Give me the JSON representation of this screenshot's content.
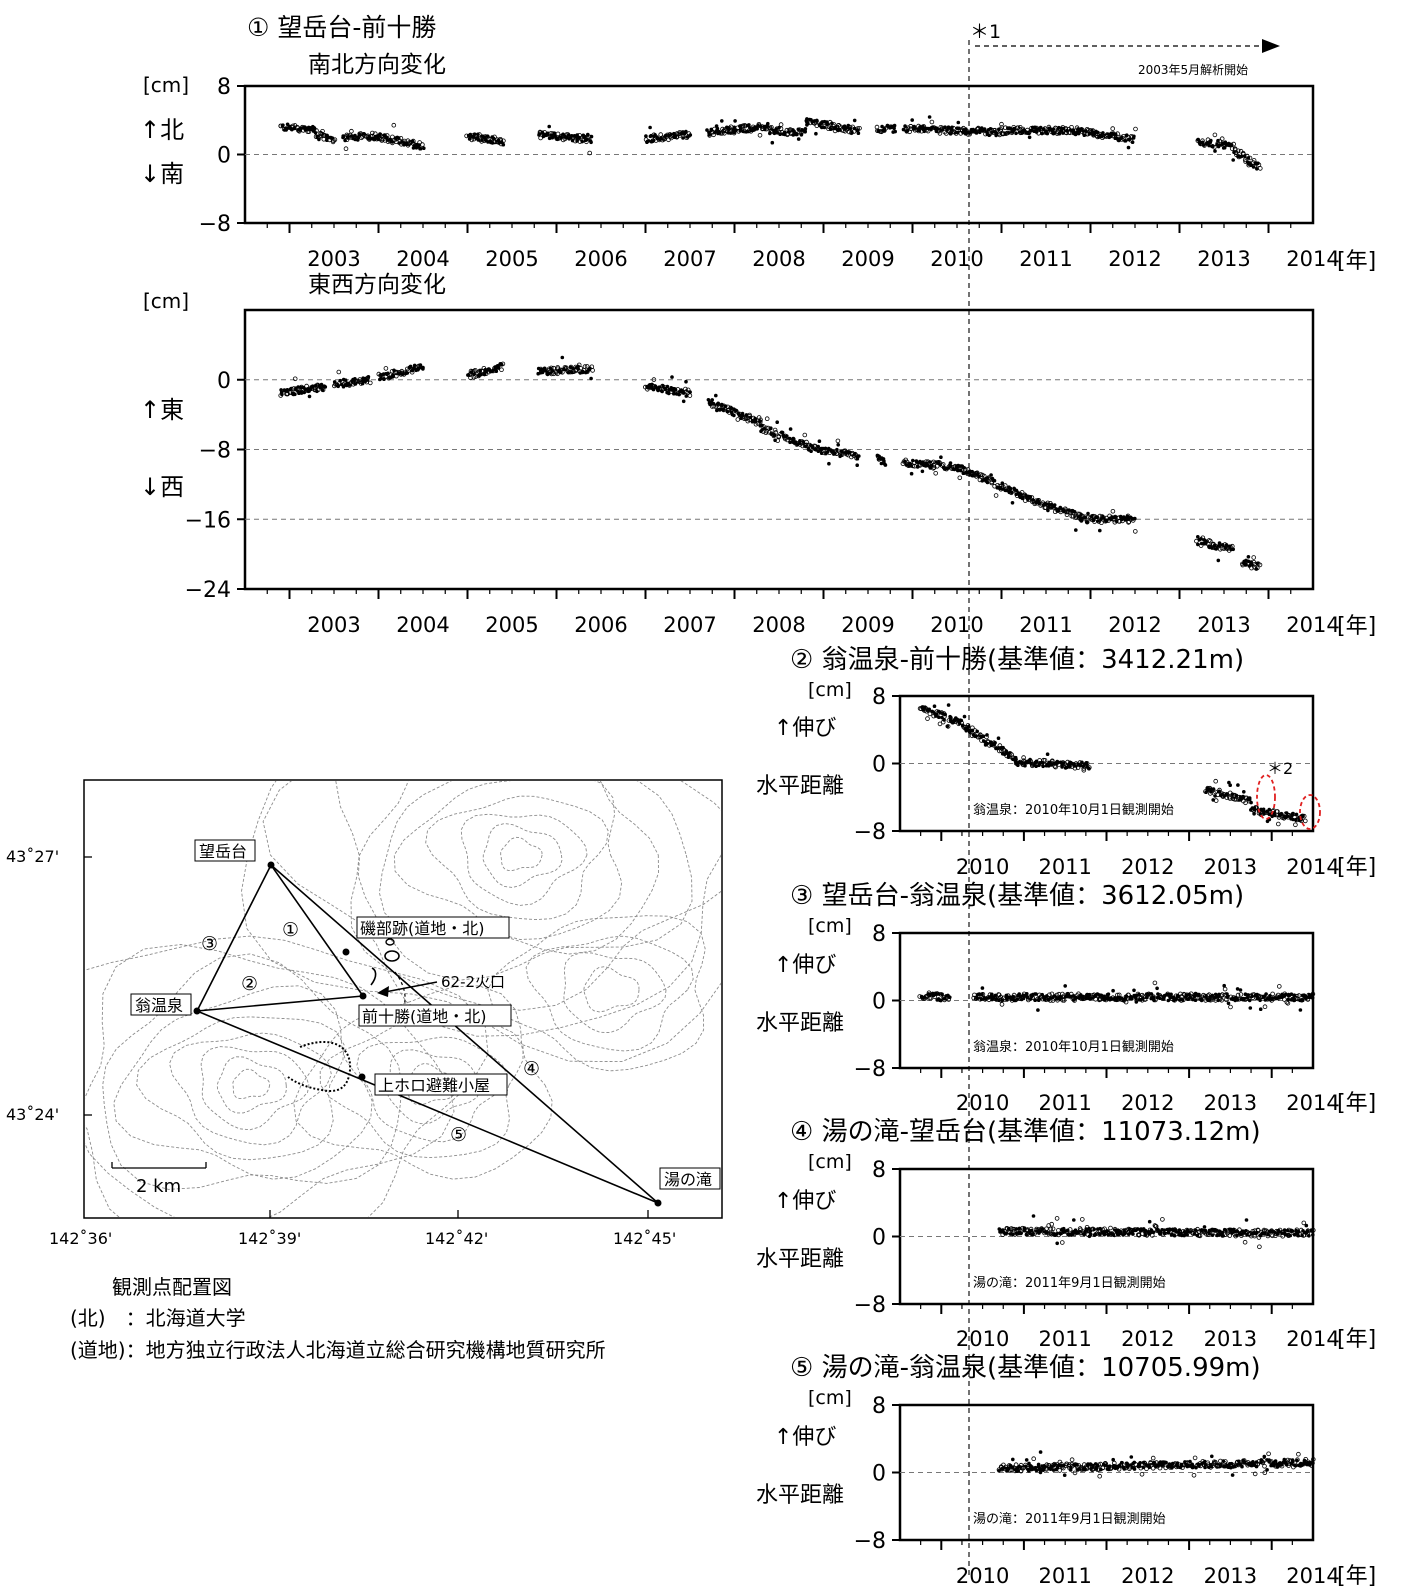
{
  "panel1": {
    "title": "① 望岳台-前十勝",
    "note_marker": "＊1",
    "note_text": "2003年5月解析開始"
  },
  "ns": {
    "subtitle": "南北方向変化",
    "unit": "[cm]",
    "up_label": "↑北",
    "down_label": "↓南"
  },
  "ew": {
    "subtitle": "東西方向変化",
    "unit": "[cm]",
    "up_label": "↑東",
    "down_label": "↓西"
  },
  "year_unit": "[年]",
  "baselines": [
    {
      "title": "② 翁温泉-前十勝(基準値：3412.21m)",
      "unit": "[cm]",
      "up_label": "↑伸び",
      "side_label": "水平距離",
      "note": "翁温泉：2010年10月1日観測開始",
      "marker": "＊2"
    },
    {
      "title": "③ 望岳台-翁温泉(基準値：3612.05m)",
      "unit": "[cm]",
      "up_label": "↑伸び",
      "side_label": "水平距離",
      "note": "翁温泉：2010年10月1日観測開始",
      "marker": ""
    },
    {
      "title": "④ 湯の滝-望岳台(基準値：11073.12m)",
      "unit": "[cm]",
      "up_label": "↑伸び",
      "side_label": "水平距離",
      "note": "湯の滝：2011年9月1日観測開始",
      "marker": ""
    },
    {
      "title": "⑤ 湯の滝-翁温泉(基準値：10705.99m)",
      "unit": "[cm]",
      "up_label": "↑伸び",
      "side_label": "水平距離",
      "note": "湯の滝：2011年9月1日観測開始",
      "marker": ""
    }
  ],
  "map": {
    "lat_labels": [
      "43˚27'",
      "43˚24'"
    ],
    "lon_labels": [
      "142˚36'",
      "142˚39'",
      "142˚42'",
      "142˚45'"
    ],
    "scale_label": "2 km",
    "stations": [
      "望岳台",
      "翁温泉",
      "前十勝(道地・北)",
      "上ホロ避難小屋",
      "湯の滝",
      "磯部跡(道地・北)"
    ],
    "crater_label": "62-2火口",
    "baseline_numbers": [
      "①",
      "②",
      "③",
      "④",
      "⑤"
    ],
    "caption": "観測点配置図",
    "legend": [
      "(北)　：北海道大学",
      "(道地)：地方独立行政法人北海道立総合研究機構地質研究所"
    ]
  },
  "chart_data": [
    {
      "type": "scatter",
      "title": "① 望岳台-前十勝",
      "subtitle": "南北方向変化",
      "ylabel": "[cm]",
      "xlabel": "[年]",
      "x_ticks": [
        "2003",
        "2004",
        "2005",
        "2006",
        "2007",
        "2008",
        "2009",
        "2010",
        "2011",
        "2012",
        "2013",
        "2014"
      ],
      "y_ticks": [
        8,
        0,
        -8
      ],
      "xlim": [
        2002.5,
        2014.5
      ],
      "ylim": [
        -8,
        8
      ],
      "segments": [
        {
          "x": [
            2002.9,
            2003.3
          ],
          "y": [
            3.2,
            2.9
          ]
        },
        {
          "x": [
            2003.3,
            2003.5
          ],
          "y": [
            2.2,
            1.8
          ]
        },
        {
          "x": [
            2003.6,
            2004.0
          ],
          "y": [
            2.0,
            2.2
          ]
        },
        {
          "x": [
            2004.0,
            2004.5
          ],
          "y": [
            2.1,
            1.0
          ]
        },
        {
          "x": [
            2005.0,
            2005.4
          ],
          "y": [
            2.2,
            1.5
          ]
        },
        {
          "x": [
            2005.8,
            2006.4
          ],
          "y": [
            2.3,
            1.8
          ]
        },
        {
          "x": [
            2007.0,
            2007.5
          ],
          "y": [
            1.8,
            2.4
          ]
        },
        {
          "x": [
            2007.7,
            2008.4
          ],
          "y": [
            2.6,
            3.3
          ]
        },
        {
          "x": [
            2008.4,
            2008.8
          ],
          "y": [
            2.8,
            2.6
          ]
        },
        {
          "x": [
            2008.8,
            2009.4
          ],
          "y": [
            3.8,
            2.8
          ]
        },
        {
          "x": [
            2009.6,
            2009.8
          ],
          "y": [
            3.0,
            3.0
          ]
        },
        {
          "x": [
            2009.9,
            2011.0
          ],
          "y": [
            3.0,
            2.6
          ]
        },
        {
          "x": [
            2011.0,
            2011.8
          ],
          "y": [
            2.8,
            2.8
          ]
        },
        {
          "x": [
            2011.8,
            2012.5
          ],
          "y": [
            2.8,
            1.8
          ]
        },
        {
          "x": [
            2013.2,
            2013.6
          ],
          "y": [
            1.5,
            1.0
          ]
        },
        {
          "x": [
            2013.6,
            2013.9
          ],
          "y": [
            0.5,
            -1.5
          ]
        }
      ],
      "note": "2003年5月解析開始"
    },
    {
      "type": "scatter",
      "subtitle": "東西方向変化",
      "ylabel": "[cm]",
      "xlabel": "[年]",
      "x_ticks": [
        "2003",
        "2004",
        "2005",
        "2006",
        "2007",
        "2008",
        "2009",
        "2010",
        "2011",
        "2012",
        "2013",
        "2014"
      ],
      "y_ticks": [
        0,
        -8,
        -16,
        -24
      ],
      "xlim": [
        2002.5,
        2014.5
      ],
      "ylim": [
        -24,
        8
      ],
      "segments": [
        {
          "x": [
            2002.9,
            2003.4
          ],
          "y": [
            -1.5,
            -0.8
          ]
        },
        {
          "x": [
            2003.5,
            2003.9
          ],
          "y": [
            -0.5,
            0.0
          ]
        },
        {
          "x": [
            2004.0,
            2004.5
          ],
          "y": [
            0.3,
            1.5
          ]
        },
        {
          "x": [
            2005.0,
            2005.4
          ],
          "y": [
            0.5,
            1.5
          ]
        },
        {
          "x": [
            2005.8,
            2006.4
          ],
          "y": [
            1.0,
            1.2
          ]
        },
        {
          "x": [
            2007.0,
            2007.5
          ],
          "y": [
            -0.8,
            -1.5
          ]
        },
        {
          "x": [
            2007.7,
            2008.3
          ],
          "y": [
            -2.5,
            -5.0
          ]
        },
        {
          "x": [
            2008.3,
            2008.8
          ],
          "y": [
            -5.5,
            -7.5
          ]
        },
        {
          "x": [
            2008.8,
            2009.4
          ],
          "y": [
            -7.8,
            -8.8
          ]
        },
        {
          "x": [
            2009.6,
            2009.7
          ],
          "y": [
            -9.0,
            -9.5
          ]
        },
        {
          "x": [
            2009.9,
            2010.5
          ],
          "y": [
            -9.5,
            -10.0
          ]
        },
        {
          "x": [
            2010.5,
            2011.4
          ],
          "y": [
            -10.0,
            -14.0
          ]
        },
        {
          "x": [
            2011.4,
            2011.9
          ],
          "y": [
            -14.0,
            -15.8
          ]
        },
        {
          "x": [
            2011.9,
            2012.5
          ],
          "y": [
            -16.0,
            -16.0
          ]
        },
        {
          "x": [
            2013.2,
            2013.6
          ],
          "y": [
            -18.5,
            -19.5
          ]
        },
        {
          "x": [
            2013.7,
            2013.9
          ],
          "y": [
            -21.0,
            -21.5
          ]
        }
      ]
    },
    {
      "type": "scatter",
      "title": "② 翁温泉-前十勝(基準値：3412.21m)",
      "ylabel": "[cm]",
      "xlabel": "[年]",
      "x_ticks": [
        "2010",
        "2011",
        "2012",
        "2013",
        "2014"
      ],
      "y_ticks": [
        8,
        0,
        -8
      ],
      "xlim": [
        2009.5,
        2014.5
      ],
      "ylim": [
        -8,
        8
      ],
      "segments": [
        {
          "x": [
            2009.75,
            2010.2
          ],
          "y": [
            6.5,
            5.0
          ]
        },
        {
          "x": [
            2010.2,
            2010.9
          ],
          "y": [
            5.0,
            0.5
          ]
        },
        {
          "x": [
            2010.9,
            2011.8
          ],
          "y": [
            0.2,
            -0.3
          ]
        },
        {
          "x": [
            2013.2,
            2013.75
          ],
          "y": [
            -3.0,
            -4.5
          ]
        },
        {
          "x": [
            2013.75,
            2014.4
          ],
          "y": [
            -5.5,
            -6.5
          ]
        }
      ],
      "note": "翁温泉：2010年10月1日観測開始"
    },
    {
      "type": "scatter",
      "title": "③ 望岳台-翁温泉(基準値：3612.05m)",
      "ylabel": "[cm]",
      "xlabel": "[年]",
      "x_ticks": [
        "2010",
        "2011",
        "2012",
        "2013",
        "2014"
      ],
      "y_ticks": [
        8,
        0,
        -8
      ],
      "xlim": [
        2009.5,
        2014.5
      ],
      "ylim": [
        -8,
        8
      ],
      "segments": [
        {
          "x": [
            2009.75,
            2010.1
          ],
          "y": [
            0.6,
            0.3
          ]
        },
        {
          "x": [
            2010.4,
            2014.5
          ],
          "y": [
            0.4,
            0.4
          ]
        }
      ],
      "note": "翁温泉：2010年10月1日観測開始"
    },
    {
      "type": "scatter",
      "title": "④ 湯の滝-望岳台(基準値：11073.12m)",
      "ylabel": "[cm]",
      "xlabel": "[年]",
      "x_ticks": [
        "2010",
        "2011",
        "2012",
        "2013",
        "2014"
      ],
      "y_ticks": [
        8,
        0,
        -8
      ],
      "xlim": [
        2009.5,
        2014.5
      ],
      "ylim": [
        -8,
        8
      ],
      "segments": [
        {
          "x": [
            2010.7,
            2014.5
          ],
          "y": [
            0.6,
            0.4
          ]
        }
      ],
      "note": "湯の滝：2011年9月1日観測開始"
    },
    {
      "type": "scatter",
      "title": "⑤ 湯の滝-翁温泉(基準値：10705.99m)",
      "ylabel": "[cm]",
      "xlabel": "[年]",
      "x_ticks": [
        "2010",
        "2011",
        "2012",
        "2013",
        "2014"
      ],
      "y_ticks": [
        8,
        0,
        -8
      ],
      "xlim": [
        2009.5,
        2014.5
      ],
      "ylim": [
        -8,
        8
      ],
      "segments": [
        {
          "x": [
            2010.7,
            2014.5
          ],
          "y": [
            0.5,
            1.2
          ]
        }
      ],
      "note": "湯の滝：2011年9月1日観測開始"
    }
  ]
}
